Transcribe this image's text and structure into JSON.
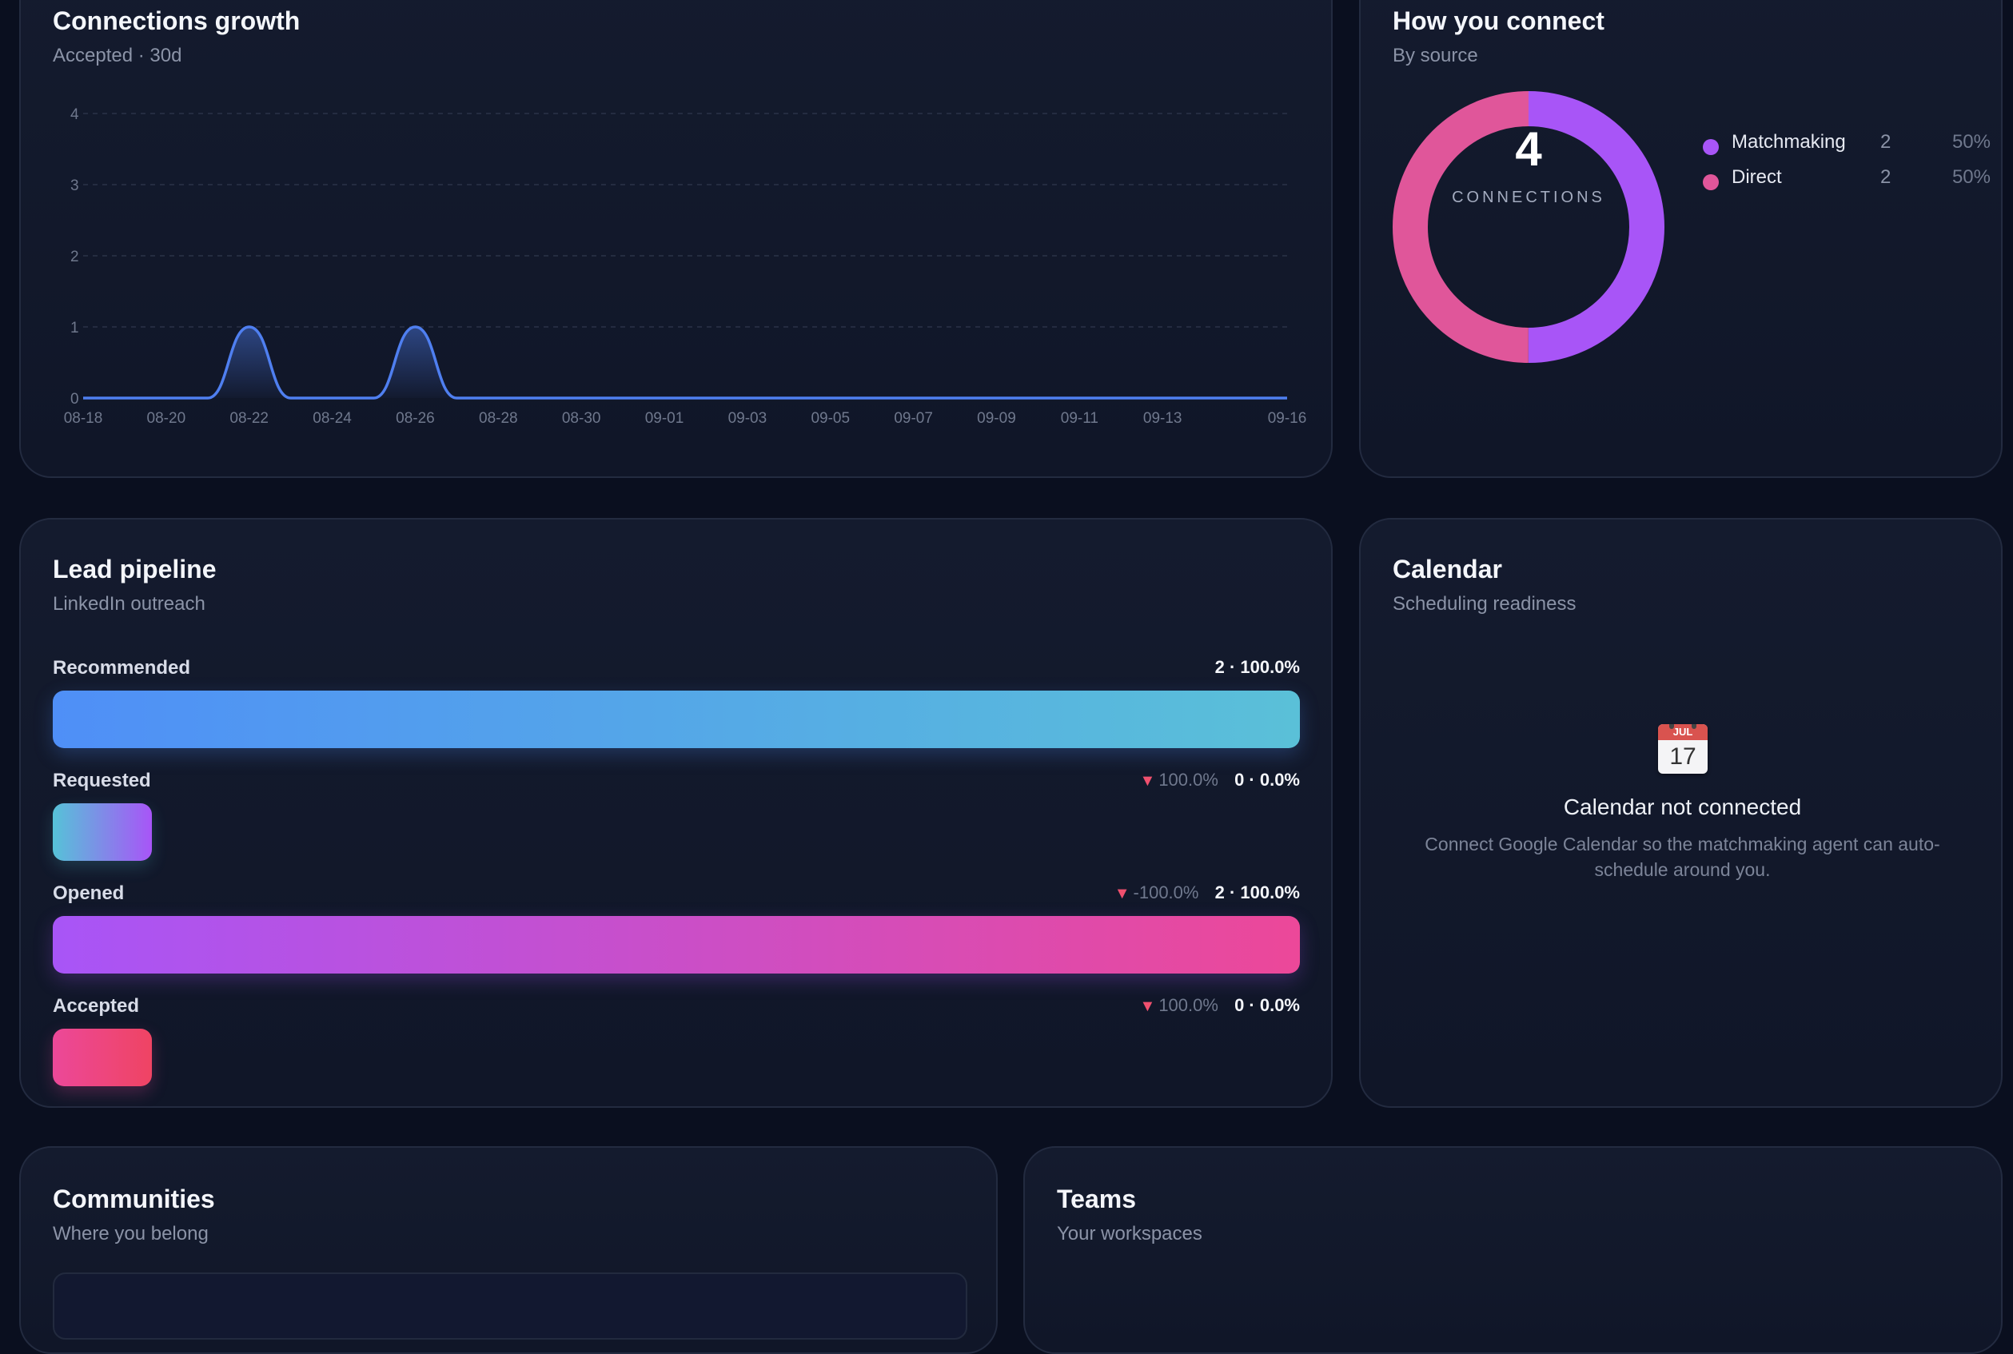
{
  "growth": {
    "title": "Connections growth",
    "subtitle": "Accepted · 30d",
    "color": "#4f7ff0"
  },
  "chart_data": {
    "type": "area",
    "title": "Connections growth",
    "subtitle": "Accepted · 30d",
    "x": [
      "08-18",
      "08-19",
      "08-20",
      "08-21",
      "08-22",
      "08-23",
      "08-24",
      "08-25",
      "08-26",
      "08-27",
      "08-28",
      "08-29",
      "08-30",
      "08-31",
      "09-01",
      "09-02",
      "09-03",
      "09-04",
      "09-05",
      "09-06",
      "09-07",
      "09-08",
      "09-09",
      "09-10",
      "09-11",
      "09-12",
      "09-13",
      "09-14",
      "09-15",
      "09-16"
    ],
    "series": [
      {
        "values": [
          0,
          0,
          0,
          0,
          1,
          0,
          0,
          0,
          1,
          0,
          0,
          0,
          0,
          0,
          0,
          0,
          0,
          0,
          0,
          0,
          0,
          0,
          0,
          0,
          0,
          0,
          0,
          0,
          0,
          0
        ]
      }
    ],
    "x_ticks": [
      "08-18",
      "08-20",
      "08-22",
      "08-24",
      "08-26",
      "08-28",
      "08-30",
      "09-01",
      "09-03",
      "09-05",
      "09-07",
      "09-09",
      "09-11",
      "09-13",
      "09-16"
    ],
    "y_ticks": [
      "0",
      "1",
      "2",
      "3",
      "4"
    ],
    "ylim": [
      0,
      4
    ],
    "grid": true
  },
  "connect": {
    "title": "How you connect",
    "subtitle": "By source",
    "total": "4",
    "total_label": "CONNECTIONS",
    "sources": [
      {
        "name": "Matchmaking",
        "count": "2",
        "pct": "50%",
        "value": 2,
        "color": "#a855f7"
      },
      {
        "name": "Direct",
        "count": "2",
        "pct": "50%",
        "value": 2,
        "color": "#e0569a"
      }
    ]
  },
  "pipeline": {
    "title": "Lead pipeline",
    "subtitle": "LinkedIn outreach",
    "stages": [
      {
        "label": "Recommended",
        "delta": "",
        "value": "2 · 100.0%",
        "fraction": 1.0
      },
      {
        "label": "Requested",
        "delta": "100.0%",
        "value": "0 · 0.0%",
        "fraction": 0.0
      },
      {
        "label": "Opened",
        "delta": "-100.0%",
        "value": "2 · 100.0%",
        "fraction": 1.0
      },
      {
        "label": "Accepted",
        "delta": "100.0%",
        "value": "0 · 0.0%",
        "fraction": 0.0
      }
    ]
  },
  "calendar": {
    "title": "Calendar",
    "subtitle": "Scheduling readiness",
    "icon": "calendar-icon",
    "icon_month": "JUL",
    "icon_day": "17",
    "status": "Calendar not connected",
    "description": "Connect Google Calendar so the matchmaking agent can auto-schedule around you."
  },
  "communities": {
    "title": "Communities",
    "subtitle": "Where you belong"
  },
  "teams": {
    "title": "Teams",
    "subtitle": "Your workspaces"
  }
}
